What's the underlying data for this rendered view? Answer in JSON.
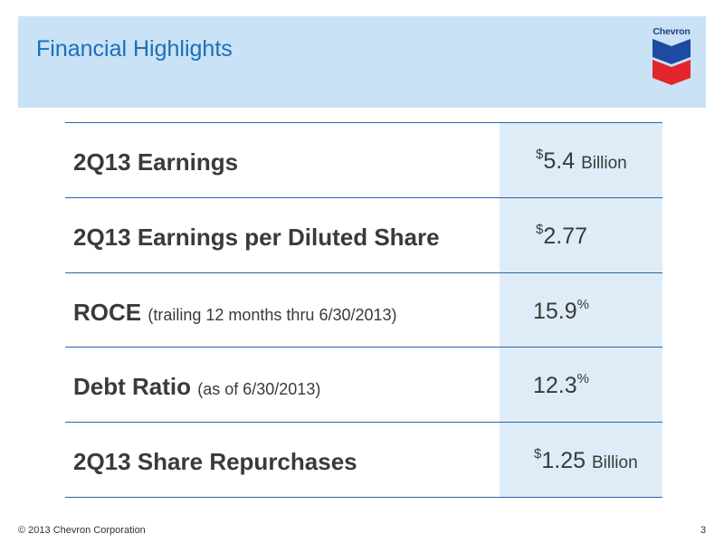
{
  "header": {
    "title": "Financial Highlights",
    "logo_text": "Chevron",
    "background": "#c9e2f5",
    "title_color": "#1c6fb8"
  },
  "table": {
    "rows": [
      {
        "label": "2Q13 Earnings",
        "note": "",
        "prefix": "$",
        "value": "5.4",
        "suffix": "",
        "unit": "Billion"
      },
      {
        "label": "2Q13 Earnings per Diluted Share",
        "note": "",
        "prefix": "$",
        "value": "2.77",
        "suffix": "",
        "unit": ""
      },
      {
        "label": "ROCE",
        "note": "(trailing 12 months thru 6/30/2013)",
        "prefix": "",
        "value": "15.9",
        "suffix": "%",
        "unit": ""
      },
      {
        "label": "Debt Ratio",
        "note": "(as of 6/30/2013)",
        "prefix": "",
        "value": "12.3",
        "suffix": "%",
        "unit": ""
      },
      {
        "label": "2Q13 Share Repurchases",
        "note": "",
        "prefix": "$",
        "value": "1.25",
        "suffix": "",
        "unit": "Billion"
      }
    ],
    "value_column_color": "#ddecf7",
    "rule_color": "#2c66a8"
  },
  "footer": {
    "copyright": "© 2013 Chevron Corporation",
    "page_number": "3"
  }
}
